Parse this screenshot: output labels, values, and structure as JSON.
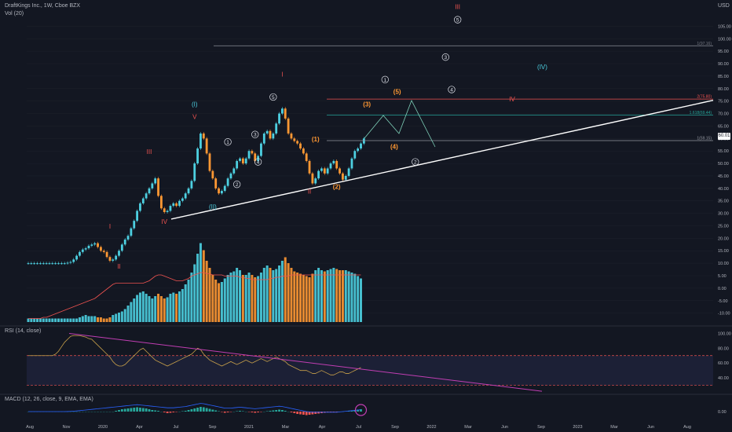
{
  "header": {
    "title": "DraftKings Inc., 1W, Cboe BZX",
    "volume_label": "Vol (20)",
    "currency": "USD",
    "rsi_label": "RSI (14, close)",
    "macd_label": "MACD (12, 26, close, 9, EMA, EMA)",
    "last_price_tag": "60.01"
  },
  "colors": {
    "background": "#131722",
    "up": "#4dd0e1",
    "down": "#ff9833",
    "rsi_line": "#c8a04a",
    "trendline": "#ffffff",
    "rsi_trend": "#c13eb3",
    "fib_line": "#5d606b",
    "fib_red": "#ef5350",
    "fib_teal": "#26a69a",
    "wave_red": "#ef5350",
    "wave_teal": "#4dd0e1",
    "wave_orange": "#ff9833",
    "wave_white": "#e0e3eb",
    "projection": "#7fd1b9",
    "volume_ma": "#ef5350"
  },
  "chart_data": {
    "type": "candlestick",
    "title": "DraftKings Inc., 1W, Cboe BZX",
    "price_axis": {
      "scale": "linear",
      "range": [
        -12,
        113
      ],
      "ticks": [
        "105.00",
        "100.00",
        "95.00",
        "90.00",
        "85.00",
        "80.00",
        "75.00",
        "70.00",
        "65.00",
        "60.00",
        "55.00",
        "50.00",
        "45.00",
        "40.00",
        "35.00",
        "30.00",
        "25.00",
        "20.00",
        "15.00",
        "10.00",
        "5.00",
        "0.00",
        "-5.00",
        "-10.00"
      ]
    },
    "time_axis": {
      "ticks": [
        "Aug",
        "Nov",
        "2020",
        "Apr",
        "Jul",
        "Sep",
        "2021",
        "Mar",
        "Apr",
        "Jul",
        "Sep",
        "2022",
        "Mar",
        "Jun",
        "Sep",
        "2023",
        "Mar",
        "Jun",
        "Aug"
      ]
    },
    "candles_close": [
      10,
      10,
      10,
      10,
      10,
      10,
      10,
      10,
      10,
      10,
      10,
      10,
      10,
      10.2,
      10.5,
      11.5,
      13,
      14.5,
      15.5,
      16,
      17,
      17.5,
      18,
      16.5,
      15,
      14.5,
      12.5,
      11,
      11.5,
      13,
      15,
      17.5,
      19.5,
      21,
      24,
      27,
      31,
      34,
      36,
      38,
      40,
      42,
      44,
      37,
      32,
      30.5,
      31,
      33,
      34,
      33,
      35,
      36,
      38,
      40,
      43,
      50,
      56,
      62,
      60,
      54,
      47,
      44,
      40,
      38,
      39,
      41,
      44,
      46,
      48,
      51,
      52,
      50,
      52,
      55,
      54,
      51,
      53,
      58,
      62,
      63,
      60,
      62,
      66,
      70,
      72,
      68,
      62,
      60,
      59,
      58,
      56,
      54,
      51,
      46,
      42,
      44,
      47,
      48,
      46,
      48,
      50,
      51,
      48,
      46,
      43.5,
      45,
      48,
      52,
      55,
      56,
      58,
      60.01
    ],
    "volume": [
      3,
      3,
      3,
      3,
      3,
      3,
      3,
      3,
      3,
      3,
      3,
      3,
      3,
      3,
      3,
      3,
      3,
      4,
      5,
      6,
      5,
      5,
      5,
      4,
      4,
      3,
      3,
      4,
      6,
      7,
      8,
      9,
      11,
      14,
      17,
      20,
      23,
      25,
      26,
      24,
      22,
      20,
      22,
      24,
      22,
      20,
      21,
      24,
      25,
      24,
      26,
      28,
      32,
      36,
      42,
      49,
      58,
      67,
      61,
      52,
      46,
      40,
      36,
      33,
      34,
      37,
      40,
      42,
      43,
      46,
      44,
      40,
      40,
      42,
      40,
      38,
      39,
      42,
      46,
      48,
      46,
      44,
      45,
      48,
      52,
      55,
      50,
      46,
      43,
      42,
      41,
      40,
      39,
      38,
      41,
      44,
      46,
      44,
      43,
      44,
      45,
      46,
      45,
      44,
      44,
      44,
      43,
      42,
      41,
      39,
      37
    ],
    "volume_ma_20": [
      3,
      3,
      3,
      3,
      3,
      4,
      4,
      5,
      6,
      7,
      8,
      9,
      10,
      11,
      12,
      13,
      14,
      15,
      16,
      17,
      18,
      19,
      20,
      22,
      24,
      26,
      28,
      30,
      32,
      33,
      33,
      33,
      33,
      33,
      33,
      33,
      33,
      33,
      33,
      34,
      35,
      37,
      39,
      40,
      40,
      39,
      38,
      37,
      36,
      35,
      35,
      35,
      36,
      37,
      39,
      40,
      41,
      42,
      42,
      41,
      41,
      40,
      40,
      40,
      40,
      39,
      39,
      39,
      39,
      39,
      38,
      38,
      37,
      37,
      36,
      36,
      36,
      36,
      36,
      36,
      37,
      37,
      38,
      38,
      39,
      39,
      39,
      40,
      40,
      40,
      40,
      40,
      40,
      40,
      40,
      40,
      40,
      40,
      40,
      40,
      40,
      40,
      40,
      40,
      40,
      40,
      40,
      40,
      40,
      40,
      40
    ],
    "rsi": {
      "range": [
        20,
        110
      ],
      "ticks": [
        "100.00",
        "80.00",
        "60.00",
        "40.00"
      ],
      "bands": [
        70,
        30
      ],
      "values": [
        70,
        70,
        70,
        70,
        70,
        70,
        70,
        70,
        70,
        72,
        76,
        82,
        88,
        92,
        96,
        97,
        97,
        97,
        96,
        95,
        93,
        92,
        88,
        84,
        80,
        76,
        72,
        68,
        62,
        58,
        56,
        56,
        58,
        62,
        66,
        70,
        74,
        78,
        80,
        76,
        72,
        68,
        64,
        62,
        60,
        58,
        56,
        58,
        60,
        62,
        64,
        66,
        68,
        70,
        72,
        76,
        80,
        78,
        72,
        68,
        64,
        62,
        60,
        58,
        56,
        58,
        60,
        62,
        60,
        58,
        60,
        62,
        64,
        62,
        60,
        62,
        64,
        66,
        64,
        62,
        64,
        66,
        68,
        66,
        64,
        62,
        58,
        56,
        54,
        52,
        50,
        50,
        50,
        48,
        46,
        46,
        48,
        50,
        48,
        46,
        44,
        44,
        46,
        48,
        48,
        46,
        46,
        48,
        50,
        52,
        54
      ]
    },
    "macd": {
      "ticks": [
        "0.00"
      ],
      "histogram": [
        0,
        0,
        0,
        0,
        0,
        0,
        0,
        0,
        0,
        0,
        0,
        0,
        0,
        0,
        0,
        0,
        0,
        0,
        0,
        0,
        0,
        0,
        0,
        0,
        0,
        0,
        0,
        0,
        0,
        0.1,
        0.2,
        0.3,
        0.35,
        0.4,
        0.45,
        0.5,
        0.55,
        0.5,
        0.45,
        0.4,
        0.3,
        0.2,
        0.15,
        0.1,
        0,
        -0.1,
        -0.2,
        -0.15,
        -0.1,
        -0.05,
        0,
        0.05,
        0.1,
        0.2,
        0.3,
        0.4,
        0.5,
        0.6,
        0.55,
        0.45,
        0.35,
        0.25,
        0.15,
        0.05,
        -0.05,
        -0.15,
        -0.1,
        -0.05,
        0,
        0.05,
        0.1,
        0.05,
        0,
        -0.05,
        -0.1,
        -0.15,
        -0.1,
        -0.05,
        0,
        0.05,
        0.1,
        0.15,
        0.2,
        0.25,
        0.2,
        0.1,
        0,
        -0.1,
        -0.2,
        -0.3,
        -0.35,
        -0.4,
        -0.45,
        -0.4,
        -0.35,
        -0.3,
        -0.25,
        -0.2,
        -0.15,
        -0.1,
        -0.1,
        -0.1,
        -0.1,
        -0.05,
        0,
        0.05,
        0.1,
        0.15,
        0.2,
        0.25,
        0.3
      ],
      "macd_line": [
        0,
        0,
        0,
        0,
        0,
        0,
        0,
        0,
        0,
        0,
        0,
        0,
        0,
        0.01,
        0.03,
        0.06,
        0.1,
        0.15,
        0.2,
        0.25,
        0.3,
        0.35,
        0.4,
        0.45,
        0.5,
        0.55,
        0.6,
        0.65,
        0.7,
        0.75,
        0.8,
        0.85,
        0.9,
        0.95,
        1,
        1.05,
        1.1,
        1.05,
        1,
        0.95,
        0.9,
        0.85,
        0.8,
        0.75,
        0.7,
        0.65,
        0.6,
        0.6,
        0.6,
        0.65,
        0.7,
        0.75,
        0.8,
        0.9,
        1,
        1.1,
        1.2,
        1.3,
        1.25,
        1.15,
        1.05,
        0.95,
        0.85,
        0.75,
        0.65,
        0.55,
        0.55,
        0.55,
        0.6,
        0.65,
        0.7,
        0.65,
        0.6,
        0.55,
        0.5,
        0.45,
        0.5,
        0.55,
        0.6,
        0.65,
        0.7,
        0.75,
        0.8,
        0.85,
        0.8,
        0.7,
        0.6,
        0.5,
        0.4,
        0.3,
        0.2,
        0.1,
        0,
        -0.05,
        -0.1,
        -0.1,
        -0.1,
        -0.1,
        -0.1,
        -0.1,
        -0.1,
        -0.1,
        -0.1,
        -0.05,
        0,
        0.05,
        0.1,
        0.15,
        0.2,
        0.25,
        0.3
      ]
    },
    "horizontal_levels": [
      {
        "label": "1(97.16)",
        "value": 97.16
      },
      {
        "label": "2(75.80)",
        "value": 75.8
      },
      {
        "label": "1.618(69.44)",
        "value": 69.44
      },
      {
        "label": "1(59.15)",
        "value": 59.15
      }
    ],
    "wave_labels": [
      {
        "text": "I",
        "color": "red",
        "bar": 27,
        "price": 24
      },
      {
        "text": "II",
        "color": "red",
        "bar": 30,
        "price": 8
      },
      {
        "text": "III",
        "color": "red",
        "bar": 40,
        "price": 54
      },
      {
        "text": "IV",
        "color": "red",
        "bar": 45,
        "price": 26
      },
      {
        "text": "V",
        "color": "red",
        "bar": 55,
        "price": 68
      },
      {
        "text": "I",
        "color": "red",
        "bar": 84,
        "price": 85
      },
      {
        "text": "II",
        "color": "red",
        "bar": 93,
        "price": 38
      },
      {
        "text": "III",
        "color": "red",
        "bar": 142,
        "price": 112
      },
      {
        "text": "IV",
        "color": "red",
        "bar": 160,
        "price": 75
      },
      {
        "text": "(I)",
        "color": "teal",
        "bar": 55,
        "price": 73
      },
      {
        "text": "(II)",
        "color": "teal",
        "bar": 61,
        "price": 32
      },
      {
        "text": "(IV)",
        "color": "teal",
        "bar": 170,
        "price": 88
      },
      {
        "text": "(1)",
        "color": "orange",
        "bar": 95,
        "price": 59
      },
      {
        "text": "(2)",
        "color": "orange",
        "bar": 102,
        "price": 40
      },
      {
        "text": "(3)",
        "color": "orange",
        "bar": 112,
        "price": 73
      },
      {
        "text": "(4)",
        "color": "orange",
        "bar": 121,
        "price": 56
      },
      {
        "text": "(5)",
        "color": "orange",
        "bar": 122,
        "price": 78
      },
      {
        "text": "1",
        "color": "white",
        "bar": 66,
        "price": 58,
        "circled": true
      },
      {
        "text": "2",
        "color": "white",
        "bar": 69,
        "price": 41,
        "circled": true
      },
      {
        "text": "3",
        "color": "white",
        "bar": 75,
        "price": 61,
        "circled": true
      },
      {
        "text": "4",
        "color": "white",
        "bar": 76,
        "price": 50,
        "circled": true
      },
      {
        "text": "5",
        "color": "white",
        "bar": 81,
        "price": 76,
        "circled": true
      },
      {
        "text": "1",
        "color": "white",
        "bar": 118,
        "price": 83,
        "circled": true
      },
      {
        "text": "2",
        "color": "white",
        "bar": 128,
        "price": 50,
        "circled": true
      },
      {
        "text": "3",
        "color": "white",
        "bar": 138,
        "price": 92,
        "circled": true
      },
      {
        "text": "4",
        "color": "white",
        "bar": 140,
        "price": 79,
        "circled": true
      },
      {
        "text": "5",
        "color": "white",
        "bar": 142,
        "price": 107,
        "circled": true
      }
    ]
  }
}
